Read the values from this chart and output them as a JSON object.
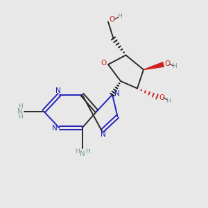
{
  "background_color": "#e8e8e8",
  "bond_color": "#2a2a2a",
  "nitrogen_color": "#2222bb",
  "oxygen_color": "#cc2222",
  "hydrogen_color": "#7a9a9a",
  "wedge_color": "#1a1a1a",
  "figsize": [
    3.0,
    3.0
  ],
  "dpi": 100,
  "xlim": [
    0,
    10
  ],
  "ylim": [
    0,
    10
  ]
}
